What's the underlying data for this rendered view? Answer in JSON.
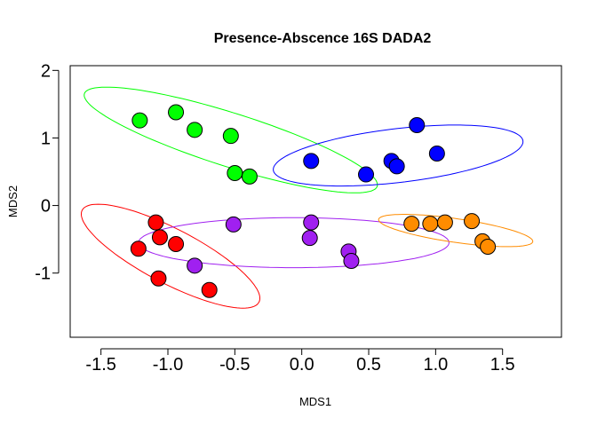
{
  "chart_data": {
    "type": "scatter",
    "title": "Presence-Abscence  16S DADA2",
    "xlabel": "MDS1",
    "ylabel": "MDS2",
    "xlim": [
      -1.73,
      1.94
    ],
    "ylim": [
      -1.95,
      2.07
    ],
    "xticks": [
      -1.5,
      -1.0,
      -0.5,
      0.0,
      0.5,
      1.0,
      1.5
    ],
    "xtick_labels": [
      "-1.5",
      "-1.0",
      "-0.5",
      "0.0",
      "0.5",
      "1.0",
      "1.5"
    ],
    "yticks": [
      -1,
      0,
      1,
      2
    ],
    "ytick_labels": [
      "-1",
      "0",
      "1",
      "2"
    ],
    "grid": false,
    "series": [
      {
        "color": "#00ff00",
        "x": [
          -1.21,
          -0.94,
          -0.8,
          -0.53,
          -0.5,
          -0.39
        ],
        "y": [
          1.26,
          1.38,
          1.12,
          1.03,
          0.48,
          0.43
        ],
        "ellipse": {
          "cx": -0.53,
          "cy": 0.97,
          "rx": 1.3,
          "ry": 0.35,
          "angle_deg": -34
        }
      },
      {
        "color": "#0000ff",
        "x": [
          0.07,
          0.48,
          0.67,
          0.71,
          0.86,
          1.01
        ],
        "y": [
          0.66,
          0.46,
          0.66,
          0.58,
          1.19,
          0.77
        ],
        "ellipse": {
          "cx": 0.72,
          "cy": 0.74,
          "rx": 0.96,
          "ry": 0.39,
          "angle_deg": 15
        }
      },
      {
        "color": "#ff0000",
        "x": [
          -1.22,
          -1.09,
          -1.06,
          -0.94,
          -1.07,
          -0.69
        ],
        "y": [
          -0.64,
          -0.25,
          -0.47,
          -0.57,
          -1.08,
          -1.25
        ],
        "ellipse": {
          "cx": -0.98,
          "cy": -0.75,
          "rx": 0.97,
          "ry": 0.31,
          "angle_deg": -50
        }
      },
      {
        "color": "#a020f0",
        "x": [
          -0.8,
          -0.51,
          0.06,
          0.07,
          0.35,
          0.37
        ],
        "y": [
          -0.89,
          -0.28,
          -0.48,
          -0.25,
          -0.68,
          -0.82
        ],
        "ellipse": {
          "cx": -0.06,
          "cy": -0.55,
          "rx": 1.16,
          "ry": 0.37,
          "angle_deg": 0
        }
      },
      {
        "color": "#ff8c00",
        "x": [
          0.82,
          0.96,
          1.07,
          1.27,
          1.35,
          1.39
        ],
        "y": [
          -0.27,
          -0.27,
          -0.25,
          -0.23,
          -0.53,
          -0.61
        ],
        "ellipse": {
          "cx": 1.15,
          "cy": -0.37,
          "rx": 0.6,
          "ry": 0.17,
          "angle_deg": -17
        }
      }
    ]
  }
}
